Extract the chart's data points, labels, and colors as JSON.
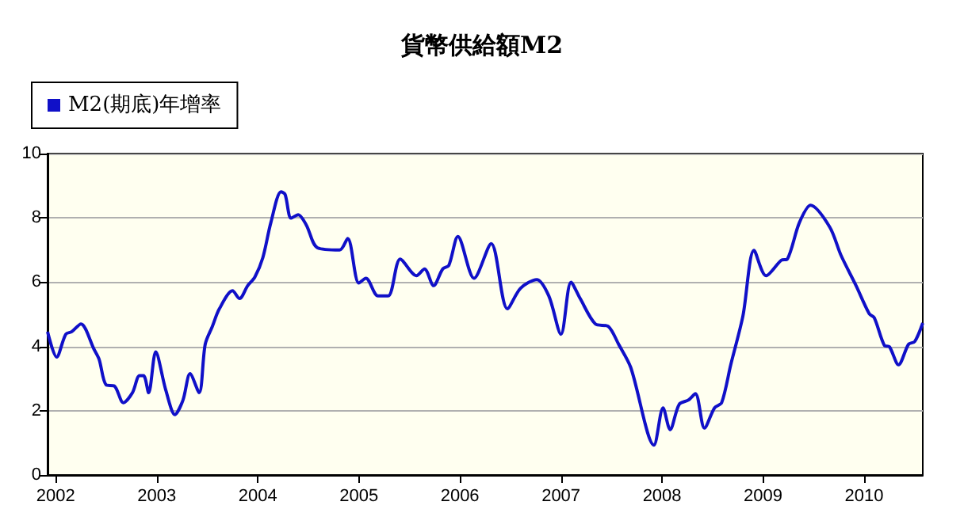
{
  "chart_data": {
    "type": "line",
    "title": "貨幣供給額M2",
    "legend": "top left",
    "grid": "y",
    "marker": "none",
    "line_style": "solid",
    "xlim": [
      2001.92,
      2010.58
    ],
    "xticks": [
      2002,
      2003,
      2004,
      2005,
      2006,
      2007,
      2008,
      2009,
      2010
    ],
    "ylim": [
      0,
      10
    ],
    "yticks": [
      0,
      2,
      4,
      6,
      8,
      10
    ],
    "series": [
      {
        "name": "M2(期底)年增率",
        "color": "#1010c8",
        "x": [
          2001.92,
          2002.01,
          2002.1,
          2002.16,
          2002.25,
          2002.38,
          2002.43,
          2002.5,
          2002.58,
          2002.67,
          2002.76,
          2002.83,
          2002.87,
          2002.92,
          2002.99,
          2003.09,
          2003.18,
          2003.26,
          2003.33,
          2003.42,
          2003.48,
          2003.55,
          2003.62,
          2003.75,
          2003.82,
          2003.9,
          2003.97,
          2004.05,
          2004.13,
          2004.23,
          2004.27,
          2004.33,
          2004.4,
          2004.48,
          2004.59,
          2004.81,
          2004.89,
          2005.0,
          2005.07,
          2005.19,
          2005.29,
          2005.41,
          2005.57,
          2005.65,
          2005.74,
          2005.83,
          2005.89,
          2005.98,
          2006.14,
          2006.31,
          2006.47,
          2006.6,
          2006.76,
          2006.88,
          2007.0,
          2007.1,
          2007.19,
          2007.34,
          2007.47,
          2007.57,
          2007.69,
          2007.92,
          2008.01,
          2008.08,
          2008.17,
          2008.26,
          2008.33,
          2008.42,
          2008.52,
          2008.59,
          2008.68,
          2008.8,
          2008.91,
          2009.03,
          2009.18,
          2009.24,
          2009.36,
          2009.47,
          2009.66,
          2009.77,
          2009.92,
          2010.05,
          2010.1,
          2010.2,
          2010.25,
          2010.34,
          2010.44,
          2010.5,
          2010.58
        ],
        "values": [
          4.46,
          3.67,
          4.38,
          4.46,
          4.7,
          3.91,
          3.6,
          2.8,
          2.77,
          2.25,
          2.56,
          3.09,
          3.09,
          2.56,
          3.83,
          2.64,
          1.88,
          2.33,
          3.15,
          2.56,
          4.07,
          4.62,
          5.17,
          5.73,
          5.49,
          5.89,
          6.15,
          6.76,
          7.86,
          8.81,
          8.73,
          7.99,
          8.1,
          7.78,
          7.07,
          7.0,
          7.36,
          5.97,
          6.12,
          5.57,
          5.57,
          6.72,
          6.2,
          6.41,
          5.89,
          6.41,
          6.52,
          7.42,
          6.12,
          7.2,
          5.17,
          5.81,
          6.08,
          5.57,
          4.38,
          6.0,
          5.49,
          4.7,
          4.62,
          4.07,
          3.35,
          0.93,
          2.09,
          1.41,
          2.2,
          2.33,
          2.53,
          1.46,
          2.09,
          2.25,
          3.43,
          4.94,
          6.99,
          6.2,
          6.68,
          6.72,
          7.86,
          8.39,
          7.71,
          6.84,
          5.89,
          5.02,
          4.89,
          4.03,
          3.99,
          3.43,
          4.07,
          4.15,
          4.73
        ]
      }
    ]
  }
}
